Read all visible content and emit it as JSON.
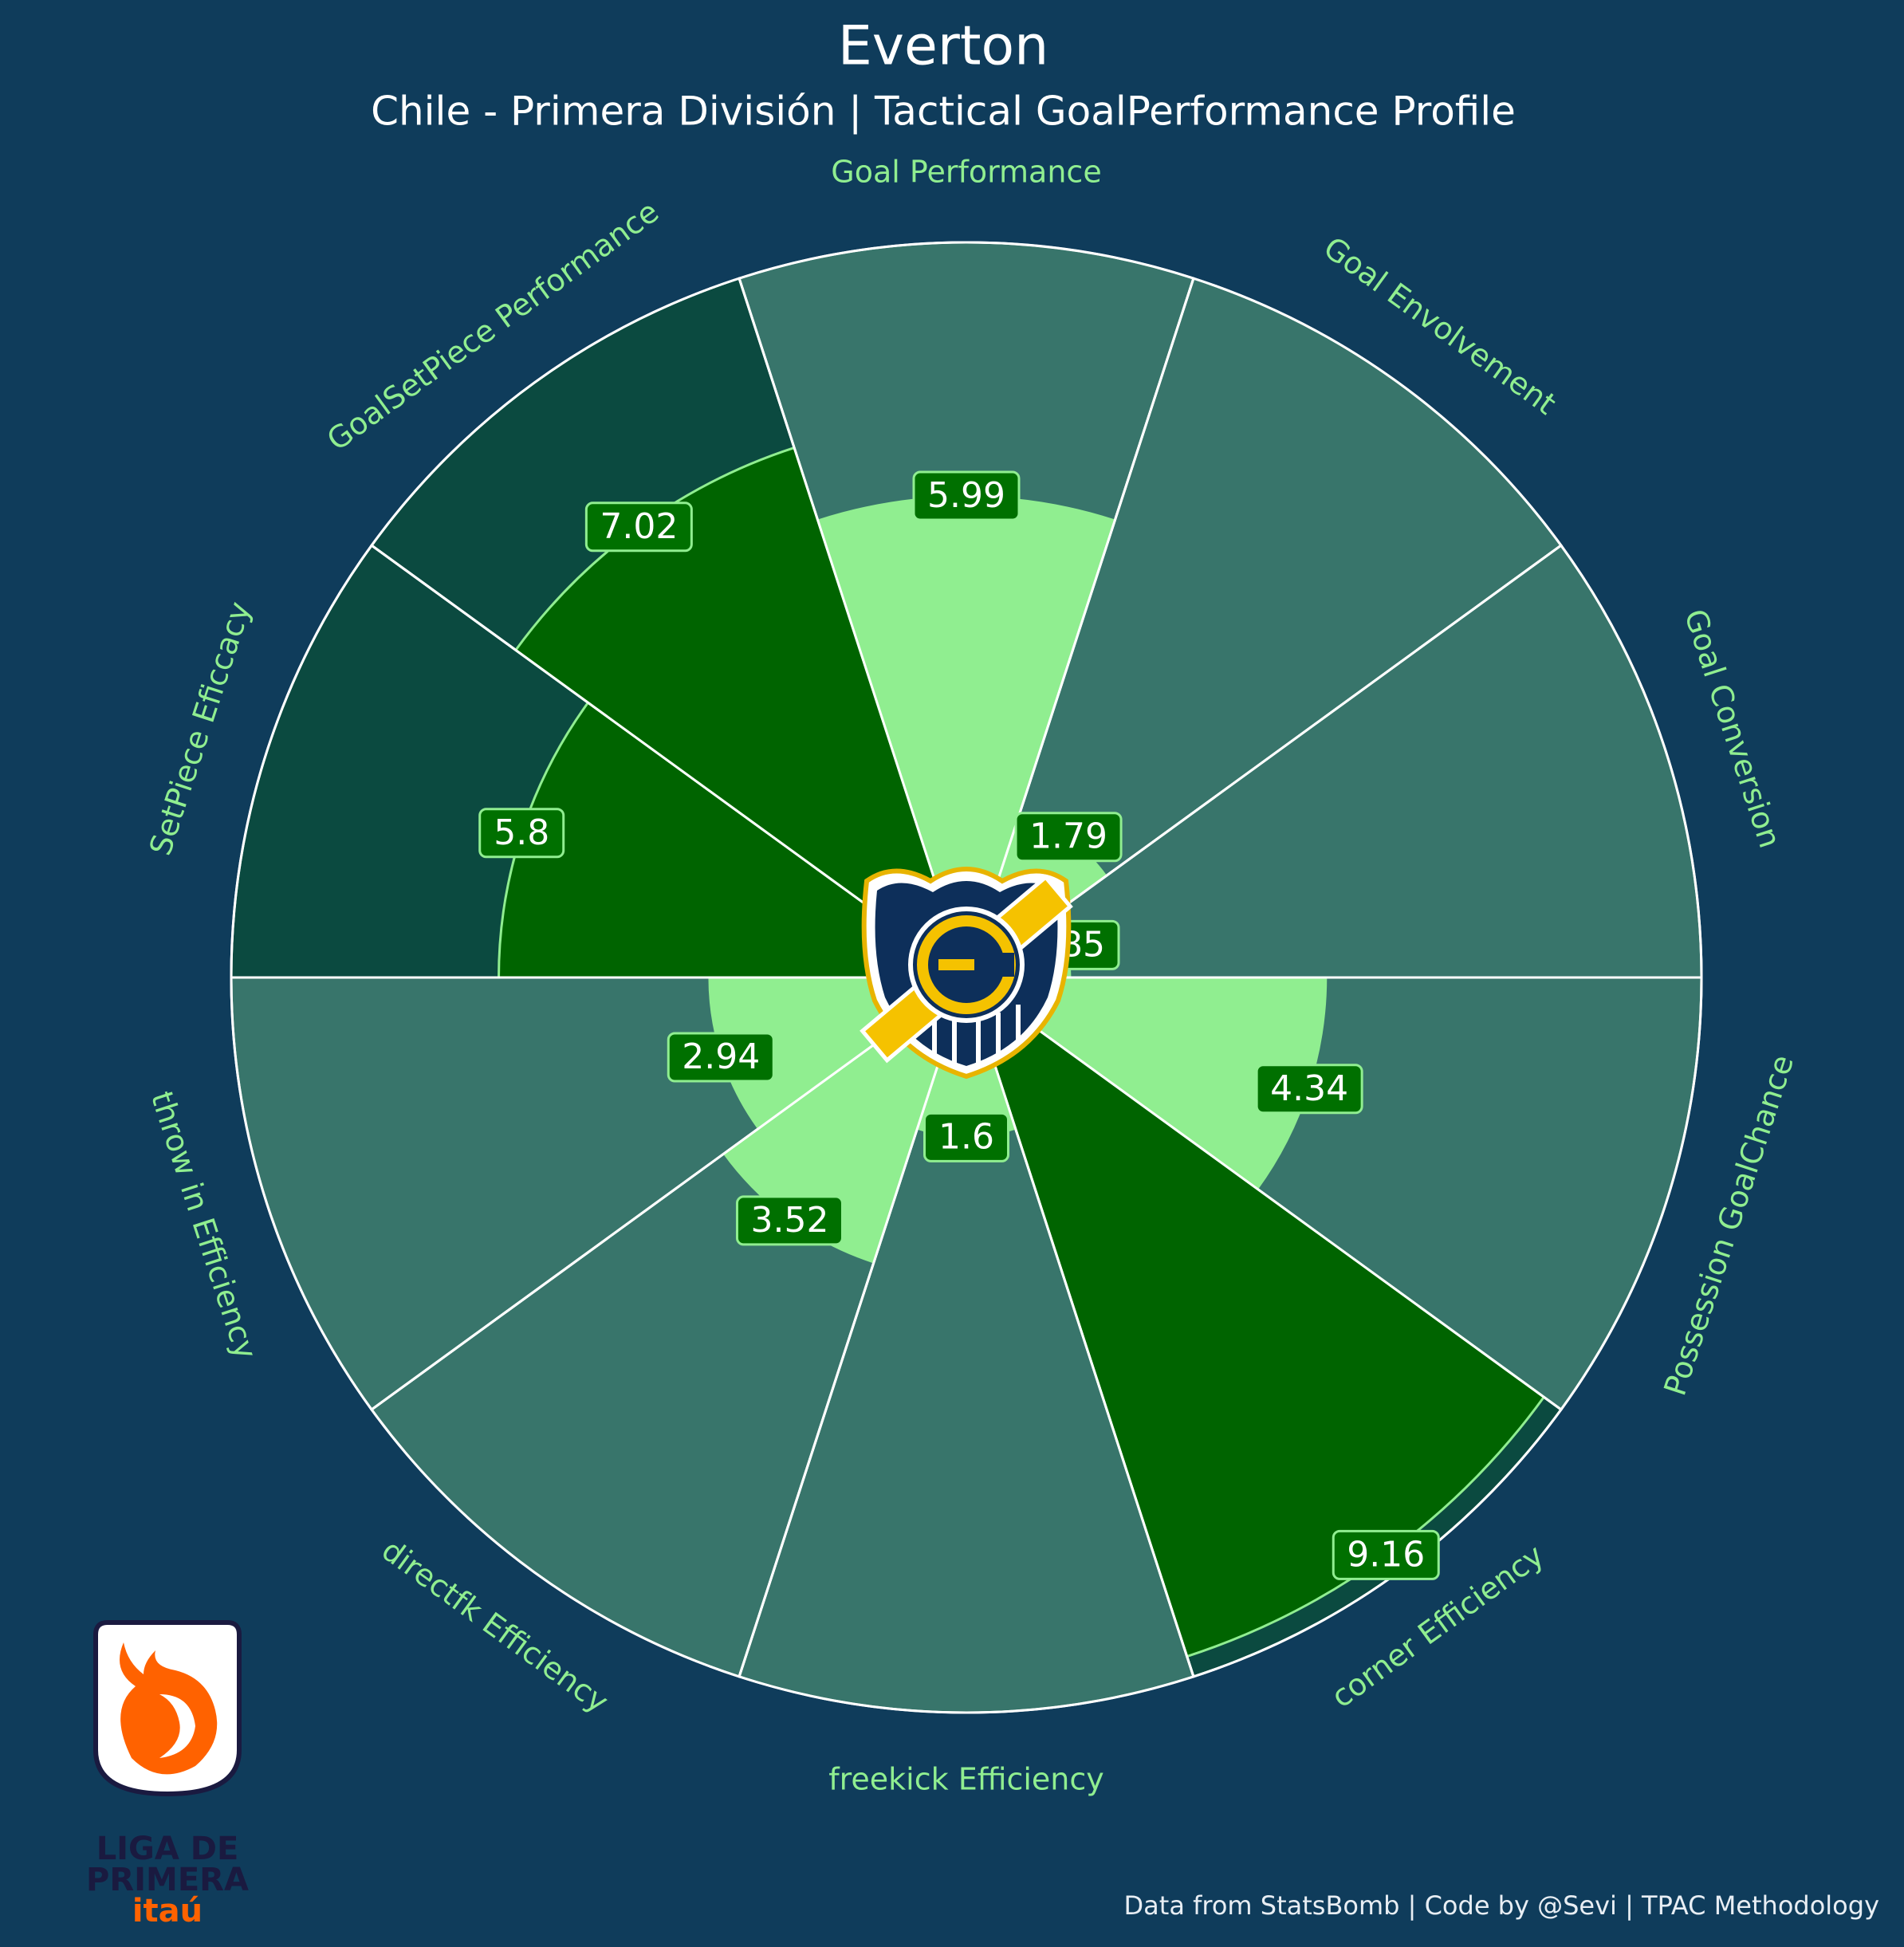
{
  "chart_data": {
    "type": "polar-bar",
    "title": "Everton",
    "subtitle": "Chile - Primera División | Tactical GoalPerformance Profile",
    "categories": [
      "Goal Performance",
      "Goal Envolvement",
      "Goal Conversion",
      "Possession GoalChance",
      "corner Efficiency",
      "freekick Efficiency",
      "directfk Efficiency",
      "throw in Efficiency",
      "SetPiece Eficcacy",
      "GoalSetPiece Performance"
    ],
    "values": [
      5.99,
      1.79,
      0.85,
      4.34,
      9.16,
      1.6,
      3.52,
      2.94,
      5.8,
      7.02
    ],
    "bar_colors": [
      "#90ee90",
      "#90ee90",
      "#90ee90",
      "#90ee90",
      "#006400",
      "#90ee90",
      "#90ee90",
      "#90ee90",
      "#006400",
      "#006400"
    ],
    "slice_colors": [
      "#38756b",
      "#38756b",
      "#38756b",
      "#38756b",
      "#0b4a40",
      "#38756b",
      "#38756b",
      "#38756b",
      "#0b4a40",
      "#0b4a40"
    ],
    "ylim": [
      -0.58,
      9.45
    ],
    "footer": "Data from StatsBomb | Code by @Sevi | TPAC Methodology"
  },
  "logo_text": [
    "LIGA DE",
    "PRIMERA",
    "itaú"
  ]
}
